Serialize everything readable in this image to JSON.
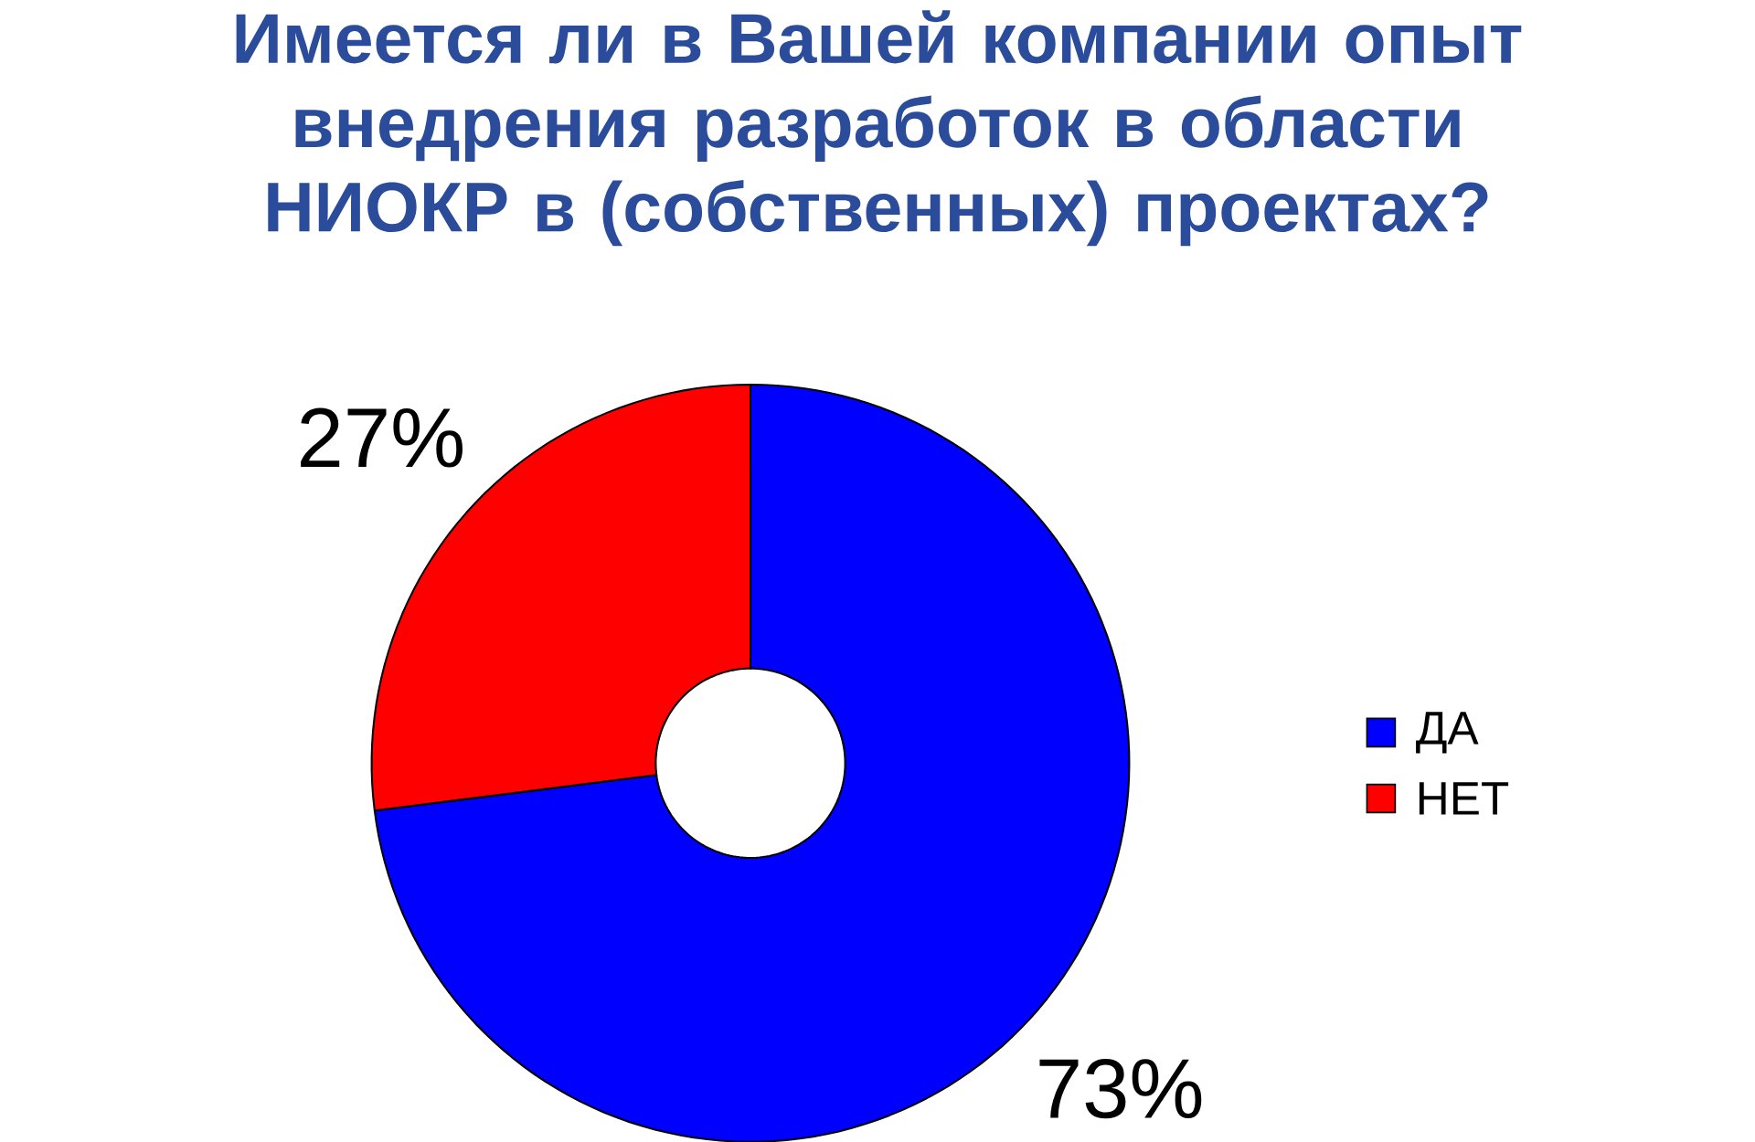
{
  "chart_data": {
    "type": "donut",
    "title": "Имеется ли в Вашей компании опыт внедрения разработок в области НИОКР в (собственных) проектах?",
    "categories": [
      "ДА",
      "НЕТ"
    ],
    "values": [
      73,
      27
    ],
    "colors": [
      "#0000ff",
      "#ff0000"
    ],
    "value_labels": [
      "73%",
      "27%"
    ],
    "legend": "right"
  }
}
